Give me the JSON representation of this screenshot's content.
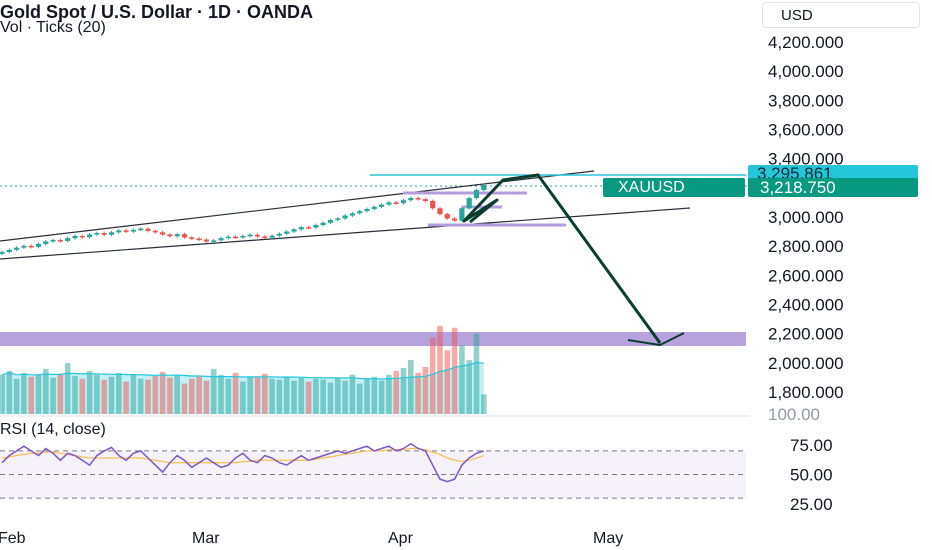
{
  "header": {
    "title": "Gold Spot / U.S. Dollar · 1D · OANDA",
    "subtitle": "Vol · Ticks (20)",
    "currency": "USD"
  },
  "rsi": {
    "label": "RSI (14, close)"
  },
  "price_badges": {
    "level": "3,295.861",
    "symbol": "XAUUSD",
    "last": "3,218.750"
  },
  "colors": {
    "up": "#26a69a",
    "down": "#ef5350",
    "rsi": "#7e57c2",
    "rsi_ma": "#f5c35b",
    "zone": "#b39ddb",
    "arrow": "#0b3d2e",
    "cyan": "#26c6da",
    "badge": "#089981"
  },
  "chart_data": {
    "type": "candlestick",
    "title": "Gold Spot / U.S. Dollar · 1D · OANDA",
    "x_labels": [
      "Feb",
      "Mar",
      "Apr",
      "May"
    ],
    "price_axis": {
      "ticks": [
        "4,200.000",
        "4,000.000",
        "3,800.000",
        "3,600.000",
        "3,400.000",
        "3,000.000",
        "2,800.000",
        "2,600.000",
        "2,400.000",
        "2,200.000",
        "2,000.000",
        "1,800.000"
      ],
      "ylim": [
        1740,
        4320
      ]
    },
    "rsi_axis": {
      "ticks": [
        "75.00",
        "50.00",
        "25.00"
      ],
      "ylim": [
        0,
        100
      ],
      "band": [
        30,
        70
      ]
    },
    "closes": [
      2760,
      2775,
      2790,
      2802,
      2795,
      2815,
      2832,
      2842,
      2836,
      2855,
      2870,
      2862,
      2880,
      2890,
      2878,
      2895,
      2908,
      2900,
      2912,
      2920,
      2905,
      2895,
      2880,
      2868,
      2882,
      2860,
      2852,
      2845,
      2832,
      2840,
      2855,
      2865,
      2860,
      2870,
      2878,
      2866,
      2858,
      2872,
      2885,
      2900,
      2915,
      2930,
      2928,
      2945,
      2960,
      2980,
      2990,
      3010,
      3025,
      3040,
      3055,
      3070,
      3085,
      3100,
      3095,
      3115,
      3130,
      3122,
      3110,
      3060,
      3020,
      2990,
      2975,
      3060,
      3130,
      3185,
      3220
    ],
    "volume": [
      40,
      44,
      36,
      42,
      38,
      40,
      46,
      37,
      41,
      52,
      39,
      36,
      44,
      40,
      35,
      38,
      42,
      33,
      41,
      36,
      35,
      39,
      43,
      37,
      40,
      31,
      36,
      38,
      34,
      46,
      40,
      36,
      42,
      33,
      38,
      37,
      41,
      36,
      35,
      38,
      34,
      37,
      33,
      36,
      35,
      32,
      37,
      34,
      40,
      31,
      36,
      38,
      34,
      40,
      44,
      47,
      55,
      42,
      48,
      78,
      90,
      65,
      88,
      70,
      55,
      82,
      20
    ],
    "rsi_values": [
      60,
      66,
      70,
      74,
      70,
      66,
      72,
      68,
      62,
      68,
      66,
      62,
      58,
      66,
      70,
      73,
      66,
      62,
      68,
      70,
      64,
      58,
      52,
      60,
      66,
      62,
      56,
      60,
      64,
      60,
      56,
      58,
      64,
      68,
      62,
      60,
      66,
      64,
      60,
      58,
      62,
      66,
      62,
      64,
      66,
      68,
      70,
      68,
      70,
      72,
      74,
      70,
      72,
      74,
      70,
      72,
      76,
      72,
      70,
      58,
      46,
      44,
      46,
      58,
      64,
      68,
      70
    ],
    "rsi_ma": [
      64,
      65,
      66,
      67,
      68,
      68,
      69,
      69,
      68,
      67,
      66,
      65,
      64,
      64,
      64,
      64,
      64,
      64,
      64,
      64,
      63,
      62,
      61,
      60,
      60,
      60,
      60,
      60,
      60,
      60,
      60,
      60,
      60,
      61,
      61,
      62,
      62,
      62,
      62,
      62,
      62,
      62,
      62,
      63,
      64,
      65,
      66,
      67,
      68,
      69,
      70,
      70,
      70,
      71,
      71,
      71,
      72,
      72,
      71,
      69,
      67,
      64,
      62,
      61,
      62,
      64,
      66
    ]
  }
}
